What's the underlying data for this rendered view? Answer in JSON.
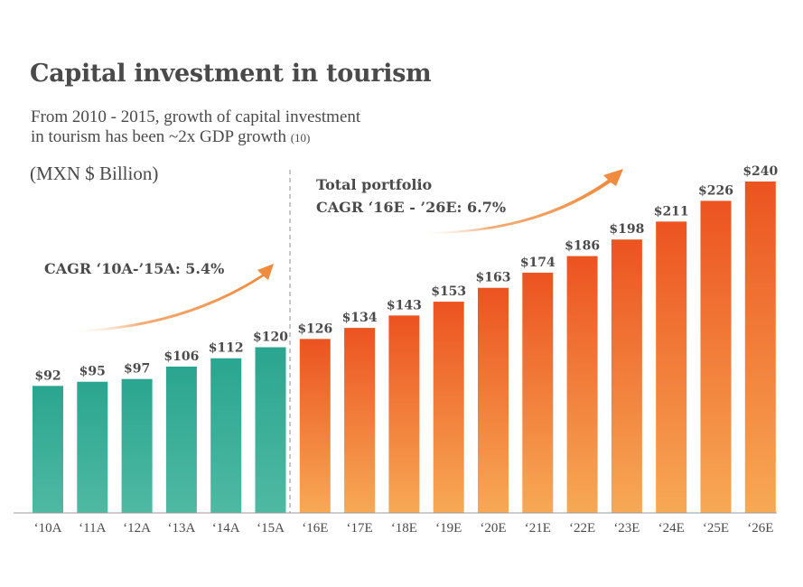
{
  "header": {
    "title": "Capital investment in tourism",
    "subtitle_line1": "From 2010 - 2015, growth of capital investment",
    "subtitle_line2": "in tourism has been ~2x GDP growth",
    "subtitle_ref": "(10)",
    "unit": "(MXN $ Billion)"
  },
  "annotations": {
    "historical_cagr": "CAGR ‘10A-’15A: 5.4%",
    "projected_title": "Total portfolio",
    "projected_cagr": "CAGR ‘16E - ’26E: 6.7%"
  },
  "colors": {
    "historical_top": "#2aa58f",
    "historical_bottom": "#4fb9a3",
    "projected_top": "#ec5320",
    "projected_bottom": "#f7a955",
    "arrow": "#f0883a",
    "axis": "#9a9a9a",
    "text": "#4a4a4a"
  },
  "chart_data": {
    "type": "bar",
    "categories": [
      "‘10A",
      "‘11A",
      "‘12A",
      "‘13A",
      "‘14A",
      "‘15A",
      "‘16E",
      "‘17E",
      "‘18E",
      "‘19E",
      "‘20E",
      "‘21E",
      "‘22E",
      "‘23E",
      "‘24E",
      "‘25E",
      "‘26E"
    ],
    "values": [
      92,
      95,
      97,
      106,
      112,
      120,
      126,
      134,
      143,
      153,
      163,
      174,
      186,
      198,
      211,
      226,
      240
    ],
    "value_labels": [
      "$92",
      "$95",
      "$97",
      "$106",
      "$112",
      "$120",
      "$126",
      "$134",
      "$143",
      "$153",
      "$163",
      "$174",
      "$186",
      "$198",
      "$211",
      "$226",
      "$240"
    ],
    "groups": [
      {
        "label": "historical",
        "from_index": 0,
        "to_index": 5
      },
      {
        "label": "projected",
        "from_index": 6,
        "to_index": 16
      }
    ],
    "ylim": [
      0,
      240
    ],
    "grid": false,
    "title": "Capital investment in tourism",
    "xlabel": "",
    "ylabel": "(MXN $ Billion)"
  }
}
